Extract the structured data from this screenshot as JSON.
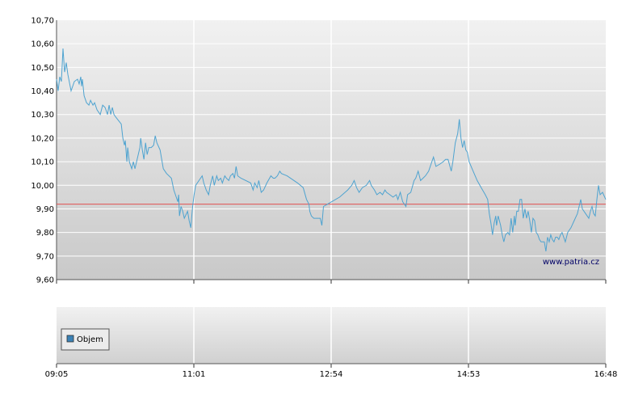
{
  "watermark": "www.patria.cz",
  "legend": {
    "label": "Objem"
  },
  "colors": {
    "price_line": "#4ea3d0",
    "reference_line": "#e05050",
    "grid": "#ffffff",
    "legend_swatch": "#3b82b6"
  },
  "chart_data": [
    {
      "type": "line",
      "ylim": [
        9.6,
        10.7
      ],
      "yticks": [
        "10,70",
        "10,60",
        "10,50",
        "10,40",
        "10,30",
        "10,20",
        "10,10",
        "10,00",
        "9,90",
        "9,80",
        "9,70",
        "9,60"
      ],
      "xticks": [
        "09:05",
        "11:01",
        "12:54",
        "14:53",
        "16:48"
      ],
      "reference_line": 9.92,
      "grid": true,
      "series": [
        {
          "points": [
            [
              0,
              10.45
            ],
            [
              2,
              10.4
            ],
            [
              4,
              10.46
            ],
            [
              6,
              10.44
            ],
            [
              8,
              10.58
            ],
            [
              10,
              10.48
            ],
            [
              12,
              10.52
            ],
            [
              14,
              10.47
            ],
            [
              18,
              10.4
            ],
            [
              22,
              10.44
            ],
            [
              26,
              10.45
            ],
            [
              28,
              10.43
            ],
            [
              30,
              10.46
            ],
            [
              31,
              10.42
            ],
            [
              32,
              10.45
            ],
            [
              34,
              10.38
            ],
            [
              37,
              10.35
            ],
            [
              40,
              10.34
            ],
            [
              42,
              10.36
            ],
            [
              45,
              10.34
            ],
            [
              47,
              10.35
            ],
            [
              50,
              10.32
            ],
            [
              54,
              10.3
            ],
            [
              57,
              10.34
            ],
            [
              60,
              10.33
            ],
            [
              63,
              10.3
            ],
            [
              65,
              10.34
            ],
            [
              67,
              10.3
            ],
            [
              69,
              10.33
            ],
            [
              71,
              10.3
            ],
            [
              73,
              10.29
            ],
            [
              80,
              10.26
            ],
            [
              82,
              10.2
            ],
            [
              84,
              10.17
            ],
            [
              85,
              10.19
            ],
            [
              87,
              10.1
            ],
            [
              88,
              10.16
            ],
            [
              90,
              10.1
            ],
            [
              93,
              10.07
            ],
            [
              95,
              10.1
            ],
            [
              97,
              10.07
            ],
            [
              99,
              10.1
            ],
            [
              103,
              10.16
            ],
            [
              104,
              10.2
            ],
            [
              106,
              10.15
            ],
            [
              108,
              10.11
            ],
            [
              110,
              10.18
            ],
            [
              112,
              10.13
            ],
            [
              114,
              10.16
            ],
            [
              117,
              10.16
            ],
            [
              120,
              10.17
            ],
            [
              122,
              10.21
            ],
            [
              124,
              10.18
            ],
            [
              128,
              10.15
            ],
            [
              132,
              10.07
            ],
            [
              136,
              10.05
            ],
            [
              142,
              10.03
            ],
            [
              145,
              9.98
            ],
            [
              148,
              9.95
            ],
            [
              150,
              9.93
            ],
            [
              151,
              9.96
            ],
            [
              152,
              9.87
            ],
            [
              154,
              9.91
            ],
            [
              156,
              9.89
            ],
            [
              158,
              9.86
            ],
            [
              162,
              9.89
            ],
            [
              164,
              9.85
            ],
            [
              166,
              9.82
            ],
            [
              168,
              9.9
            ],
            [
              170,
              9.96
            ],
            [
              172,
              10.0
            ],
            [
              178,
              10.03
            ],
            [
              180,
              10.04
            ],
            [
              182,
              10.01
            ],
            [
              185,
              9.98
            ],
            [
              188,
              9.96
            ],
            [
              190,
              10.0
            ],
            [
              193,
              10.04
            ],
            [
              195,
              10.0
            ],
            [
              198,
              10.04
            ],
            [
              200,
              10.02
            ],
            [
              203,
              10.03
            ],
            [
              205,
              10.01
            ],
            [
              208,
              10.04
            ],
            [
              210,
              10.03
            ],
            [
              213,
              10.02
            ],
            [
              215,
              10.04
            ],
            [
              218,
              10.05
            ],
            [
              220,
              10.03
            ],
            [
              222,
              10.08
            ],
            [
              224,
              10.04
            ],
            [
              228,
              10.03
            ],
            [
              240,
              10.01
            ],
            [
              243,
              9.98
            ],
            [
              245,
              10.01
            ],
            [
              248,
              9.99
            ],
            [
              250,
              10.02
            ],
            [
              253,
              9.97
            ],
            [
              256,
              9.98
            ],
            [
              260,
              10.01
            ],
            [
              265,
              10.04
            ],
            [
              268,
              10.03
            ],
            [
              270,
              10.03
            ],
            [
              273,
              10.04
            ],
            [
              276,
              10.06
            ],
            [
              278,
              10.05
            ],
            [
              285,
              10.04
            ],
            [
              298,
              10.01
            ],
            [
              305,
              9.99
            ],
            [
              309,
              9.94
            ],
            [
              312,
              9.92
            ],
            [
              313,
              9.89
            ],
            [
              315,
              9.87
            ],
            [
              318,
              9.86
            ],
            [
              322,
              9.86
            ],
            [
              326,
              9.86
            ],
            [
              328,
              9.83
            ],
            [
              330,
              9.91
            ],
            [
              340,
              9.93
            ],
            [
              350,
              9.95
            ],
            [
              360,
              9.98
            ],
            [
              365,
              10.0
            ],
            [
              368,
              10.02
            ],
            [
              371,
              9.99
            ],
            [
              374,
              9.97
            ],
            [
              378,
              9.99
            ],
            [
              383,
              10.0
            ],
            [
              387,
              10.02
            ],
            [
              389,
              10.0
            ],
            [
              393,
              9.98
            ],
            [
              396,
              9.96
            ],
            [
              400,
              9.97
            ],
            [
              403,
              9.96
            ],
            [
              406,
              9.98
            ],
            [
              408,
              9.97
            ],
            [
              412,
              9.96
            ],
            [
              416,
              9.95
            ],
            [
              420,
              9.96
            ],
            [
              422,
              9.94
            ],
            [
              425,
              9.97
            ],
            [
              428,
              9.93
            ],
            [
              432,
              9.91
            ],
            [
              434,
              9.96
            ],
            [
              438,
              9.97
            ],
            [
              442,
              10.02
            ],
            [
              444,
              10.03
            ],
            [
              447,
              10.06
            ],
            [
              450,
              10.02
            ],
            [
              453,
              10.03
            ],
            [
              456,
              10.04
            ],
            [
              460,
              10.06
            ],
            [
              463,
              10.09
            ],
            [
              466,
              10.12
            ],
            [
              469,
              10.08
            ],
            [
              474,
              10.09
            ],
            [
              478,
              10.1
            ],
            [
              481,
              10.11
            ],
            [
              484,
              10.11
            ],
            [
              488,
              10.06
            ],
            [
              490,
              10.1
            ],
            [
              493,
              10.18
            ],
            [
              496,
              10.22
            ],
            [
              498,
              10.28
            ],
            [
              500,
              10.2
            ],
            [
              502,
              10.16
            ],
            [
              504,
              10.19
            ],
            [
              506,
              10.15
            ],
            [
              508,
              10.14
            ],
            [
              510,
              10.1
            ],
            [
              515,
              10.06
            ],
            [
              520,
              10.02
            ],
            [
              525,
              9.99
            ],
            [
              530,
              9.96
            ],
            [
              533,
              9.94
            ],
            [
              535,
              9.88
            ],
            [
              537,
              9.84
            ],
            [
              539,
              9.79
            ],
            [
              541,
              9.84
            ],
            [
              543,
              9.87
            ],
            [
              544,
              9.83
            ],
            [
              546,
              9.87
            ],
            [
              549,
              9.83
            ],
            [
              551,
              9.79
            ],
            [
              553,
              9.76
            ],
            [
              555,
              9.79
            ],
            [
              558,
              9.8
            ],
            [
              560,
              9.79
            ],
            [
              562,
              9.86
            ],
            [
              564,
              9.8
            ],
            [
              566,
              9.87
            ],
            [
              567,
              9.83
            ],
            [
              569,
              9.89
            ],
            [
              571,
              9.89
            ],
            [
              573,
              9.94
            ],
            [
              575,
              9.94
            ],
            [
              577,
              9.86
            ],
            [
              579,
              9.9
            ],
            [
              581,
              9.86
            ],
            [
              583,
              9.89
            ],
            [
              585,
              9.85
            ],
            [
              587,
              9.8
            ],
            [
              589,
              9.86
            ],
            [
              591,
              9.85
            ],
            [
              593,
              9.8
            ],
            [
              595,
              9.79
            ],
            [
              597,
              9.77
            ],
            [
              599,
              9.76
            ],
            [
              603,
              9.76
            ],
            [
              605,
              9.72
            ],
            [
              607,
              9.78
            ],
            [
              609,
              9.76
            ],
            [
              611,
              9.79
            ],
            [
              613,
              9.77
            ],
            [
              615,
              9.76
            ],
            [
              617,
              9.78
            ],
            [
              619,
              9.78
            ],
            [
              621,
              9.77
            ],
            [
              623,
              9.79
            ],
            [
              625,
              9.8
            ],
            [
              627,
              9.78
            ],
            [
              629,
              9.76
            ],
            [
              632,
              9.8
            ],
            [
              636,
              9.82
            ],
            [
              640,
              9.85
            ],
            [
              644,
              9.88
            ],
            [
              646,
              9.91
            ],
            [
              648,
              9.94
            ],
            [
              650,
              9.9
            ],
            [
              652,
              9.89
            ],
            [
              654,
              9.88
            ],
            [
              656,
              9.87
            ],
            [
              658,
              9.86
            ],
            [
              660,
              9.89
            ],
            [
              662,
              9.91
            ],
            [
              664,
              9.88
            ],
            [
              666,
              9.87
            ],
            [
              668,
              9.94
            ],
            [
              670,
              10.0
            ],
            [
              672,
              9.96
            ],
            [
              675,
              9.97
            ],
            [
              679,
              9.94
            ]
          ]
        }
      ]
    },
    {
      "type": "bar",
      "series": [
        {
          "name": "Objem",
          "values": []
        }
      ]
    }
  ]
}
